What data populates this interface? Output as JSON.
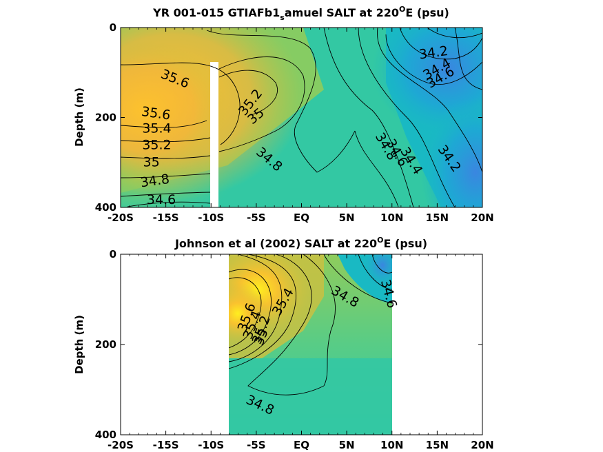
{
  "colors": {
    "salinity_ramp": [
      "#3a86e0",
      "#1fa4d8",
      "#19b9c3",
      "#33c8a3",
      "#58cc86",
      "#8fcc5c",
      "#c9c042",
      "#f3b63a",
      "#fdc22d",
      "#ffef1f"
    ],
    "background": "#ffffff",
    "missing": "#ffffff"
  },
  "chart_data": [
    {
      "type": "heatmap",
      "title": {
        "main": "YR 001-015 GTIAFb1",
        "sub": "s",
        "rest": "amuel SALT at 220",
        "sup": "O",
        "end": "E (psu)"
      },
      "xlabel": "",
      "ylabel": "Depth (m)",
      "x_ticks": [
        "-20S",
        "-15S",
        "-10S",
        "-5S",
        "EQ",
        "5N",
        "10N",
        "15N",
        "20N"
      ],
      "x_values": [
        -20,
        -15,
        -10,
        -5,
        0,
        5,
        10,
        15,
        20
      ],
      "xlim": [
        -20,
        20
      ],
      "y_ticks": [
        "0",
        "200",
        "400"
      ],
      "y_values": [
        0,
        200,
        400
      ],
      "ylim": [
        400,
        0
      ],
      "grid": false,
      "missing_band": {
        "x_from": -10.3,
        "x_to": -9.5,
        "depth_from": 80,
        "depth_to": 400
      },
      "contour_labels": [
        {
          "text": "35.6",
          "x": -14.0,
          "y": 115,
          "rotate": 22
        },
        {
          "text": "35.6",
          "x": -16.1,
          "y": 192,
          "rotate": 8
        },
        {
          "text": "35.4",
          "x": -16.0,
          "y": 225,
          "rotate": 0
        },
        {
          "text": "35.2",
          "x": -16.0,
          "y": 262,
          "rotate": 0
        },
        {
          "text": "35",
          "x": -16.6,
          "y": 300,
          "rotate": 0
        },
        {
          "text": "34.8",
          "x": -16.2,
          "y": 342,
          "rotate": -8
        },
        {
          "text": "34.6",
          "x": -15.5,
          "y": 384,
          "rotate": 0
        },
        {
          "text": "35.2",
          "x": -5.6,
          "y": 167,
          "rotate": -52
        },
        {
          "text": "35",
          "x": -5.0,
          "y": 198,
          "rotate": -40
        },
        {
          "text": "34.8",
          "x": -3.6,
          "y": 294,
          "rotate": 40
        },
        {
          "text": "34.2",
          "x": 14.6,
          "y": 57,
          "rotate": -8
        },
        {
          "text": "34.4",
          "x": 15.0,
          "y": 93,
          "rotate": -30
        },
        {
          "text": "34.6",
          "x": 15.4,
          "y": 112,
          "rotate": -30
        },
        {
          "text": "34.8",
          "x": 9.3,
          "y": 265,
          "rotate": 60
        },
        {
          "text": "34.6",
          "x": 10.5,
          "y": 279,
          "rotate": 60
        },
        {
          "text": "34.4",
          "x": 12.1,
          "y": 297,
          "rotate": 58
        },
        {
          "text": "34.2",
          "x": 16.3,
          "y": 292,
          "rotate": 55
        }
      ]
    },
    {
      "type": "heatmap",
      "title": {
        "main": "Johnson et al (2002) SALT at 220",
        "sup": "O",
        "end": "E (psu)"
      },
      "xlabel": "",
      "ylabel": "Depth (m)",
      "x_ticks": [
        "-20S",
        "-15S",
        "-10S",
        "-5S",
        "EQ",
        "5N",
        "10N",
        "15N",
        "20N"
      ],
      "x_values": [
        -20,
        -15,
        -10,
        -5,
        0,
        5,
        10,
        15,
        20
      ],
      "xlim": [
        -20,
        20
      ],
      "y_ticks": [
        "0",
        "200",
        "400"
      ],
      "y_values": [
        0,
        200,
        400
      ],
      "ylim": [
        400,
        0
      ],
      "grid": false,
      "data_extent": {
        "x_from": -8,
        "x_to": 10,
        "depth_from": 0,
        "depth_to": 400
      },
      "contour_labels": [
        {
          "text": "35.6",
          "x": -6.0,
          "y": 140,
          "rotate": -70
        },
        {
          "text": "35.4",
          "x": -5.4,
          "y": 157,
          "rotate": -70
        },
        {
          "text": "35.2",
          "x": -4.4,
          "y": 168,
          "rotate": -70
        },
        {
          "text": "35",
          "x": -4.4,
          "y": 184,
          "rotate": -70
        },
        {
          "text": "35.4",
          "x": -2.0,
          "y": 106,
          "rotate": -60
        },
        {
          "text": "34.8",
          "x": 4.8,
          "y": 95,
          "rotate": 30
        },
        {
          "text": "34.6",
          "x": 9.6,
          "y": 88,
          "rotate": 75
        },
        {
          "text": "34.8",
          "x": -4.6,
          "y": 335,
          "rotate": 25
        }
      ]
    }
  ]
}
